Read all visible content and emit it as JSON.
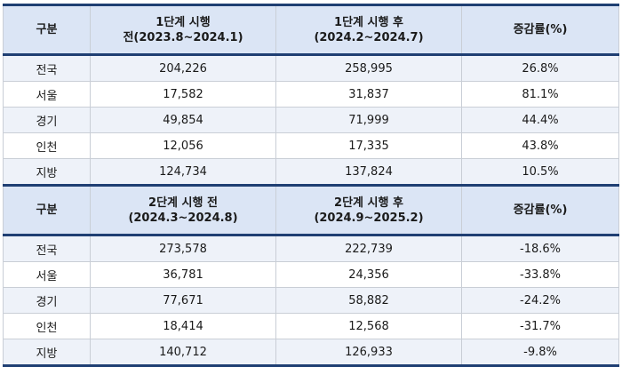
{
  "tables": [
    {
      "header": {
        "col1": "구분",
        "col2_line1": "1단계 시행",
        "col2_line2": "전(2023.8~2024.1)",
        "col3_line1": "1단계 시행 후",
        "col3_line2": "(2024.2~2024.7)",
        "col4": "증감률(%)"
      },
      "rows": [
        {
          "region": "전국",
          "before": "204,226",
          "after": "258,995",
          "rate": "26.8%"
        },
        {
          "region": "서울",
          "before": "17,582",
          "after": "31,837",
          "rate": "81.1%"
        },
        {
          "region": "경기",
          "before": "49,854",
          "after": "71,999",
          "rate": "44.4%"
        },
        {
          "region": "인천",
          "before": "12,056",
          "after": "17,335",
          "rate": "43.8%"
        },
        {
          "region": "지방",
          "before": "124,734",
          "after": "137,824",
          "rate": "10.5%"
        }
      ]
    },
    {
      "header": {
        "col1": "구분",
        "col2_line1": "2단계 시행 전",
        "col2_line2": "(2024.3~2024.8)",
        "col3_line1": "2단계 시행 후",
        "col3_line2": "(2024.9~2025.2)",
        "col4": "증감률(%)"
      },
      "rows": [
        {
          "region": "전국",
          "before": "273,578",
          "after": "222,739",
          "rate": "-18.6%"
        },
        {
          "region": "서울",
          "before": "36,781",
          "after": "24,356",
          "rate": "-33.8%"
        },
        {
          "region": "경기",
          "before": "77,671",
          "after": "58,882",
          "rate": "-24.2%"
        },
        {
          "region": "인천",
          "before": "18,414",
          "after": "12,568",
          "rate": "-31.7%"
        },
        {
          "region": "지방",
          "before": "140,712",
          "after": "126,933",
          "rate": "-9.8%"
        }
      ]
    }
  ]
}
